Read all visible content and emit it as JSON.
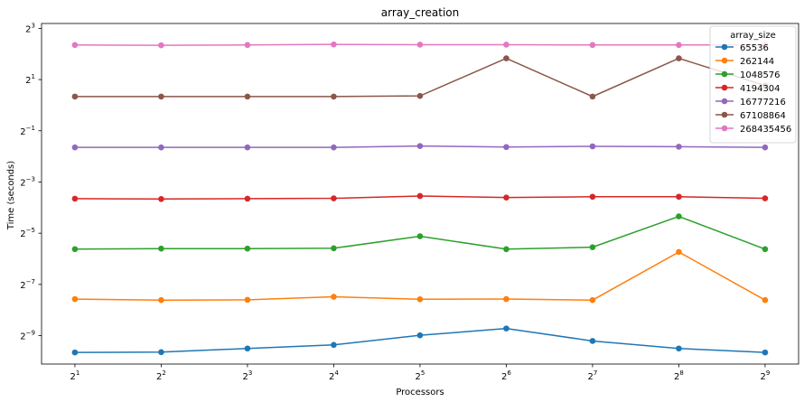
{
  "chart_data": {
    "type": "line",
    "title": "array_creation",
    "xlabel": "Processors",
    "ylabel": "Time (seconds)",
    "x_scale": "log2",
    "y_scale": "log2",
    "x": [
      2,
      4,
      8,
      16,
      32,
      64,
      128,
      256,
      512
    ],
    "x_tick_labels": [
      "2^1",
      "2^2",
      "2^3",
      "2^4",
      "2^5",
      "2^6",
      "2^7",
      "2^8",
      "2^9"
    ],
    "y_ticks": [
      -9,
      -7,
      -5,
      -3,
      -1,
      1,
      3
    ],
    "y_tick_labels": [
      "2^-9",
      "2^-7",
      "2^-5",
      "2^-3",
      "2^-1",
      "2^1",
      "2^3"
    ],
    "xlim": [
      1.53,
      670
    ],
    "ylim_log2": [
      -10.11,
      3.19
    ],
    "grid": false,
    "legend": {
      "title": "array_size",
      "placement": "top-right"
    },
    "series": [
      {
        "name": "65536",
        "color": "#1f77b4",
        "values": [
          0.00124,
          0.00125,
          0.00138,
          0.00152,
          0.00197,
          0.00237,
          0.00169,
          0.00138,
          0.00124
        ]
      },
      {
        "name": "262144",
        "color": "#ff7f0e",
        "values": [
          0.00525,
          0.00511,
          0.00515,
          0.00559,
          0.00523,
          0.00526,
          0.00511,
          0.0188,
          0.00511
        ]
      },
      {
        "name": "1048576",
        "color": "#2ca02c",
        "values": [
          0.0203,
          0.0206,
          0.0206,
          0.0208,
          0.0288,
          0.0203,
          0.0214,
          0.0493,
          0.0203
        ]
      },
      {
        "name": "4194304",
        "color": "#d62728",
        "values": [
          0.0796,
          0.0789,
          0.0796,
          0.0803,
          0.0856,
          0.0821,
          0.0839,
          0.0839,
          0.0803
        ]
      },
      {
        "name": "16777216",
        "color": "#9467bd",
        "values": [
          0.319,
          0.319,
          0.319,
          0.319,
          0.331,
          0.322,
          0.328,
          0.325,
          0.319
        ]
      },
      {
        "name": "67108864",
        "color": "#8c564b",
        "values": [
          1.263,
          1.263,
          1.263,
          1.263,
          1.285,
          3.555,
          1.263,
          3.555,
          1.7
        ]
      },
      {
        "name": "268435456",
        "color": "#e377c2",
        "values": [
          5.1,
          5.06,
          5.1,
          5.18,
          5.14,
          5.14,
          5.1,
          5.1,
          5.1
        ]
      }
    ]
  }
}
